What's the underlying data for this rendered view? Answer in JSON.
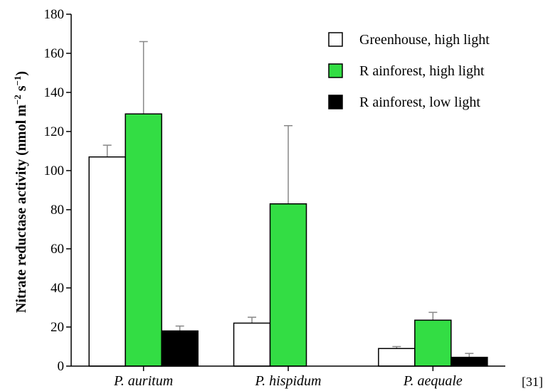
{
  "chart_data": {
    "type": "bar",
    "ylabel": "Nitrate reductase activity (nmol m",
    "ylabel_sup1": "−2",
    "ylabel_mid": " s",
    "ylabel_sup2": "−1",
    "ylabel_end": ")",
    "ylim": [
      0,
      180
    ],
    "yticks": [
      "0",
      "20",
      "40",
      "60",
      "80",
      "100",
      "120",
      "140",
      "160",
      "180"
    ],
    "categories": [
      "P. auritum",
      "P. hispidum",
      "P. aequale"
    ],
    "series": [
      {
        "name": "Greenhouse, high light",
        "color": "#ffffff",
        "values": [
          107,
          22,
          9
        ],
        "errors": [
          6,
          3,
          1
        ]
      },
      {
        "name": "R ainforest, high light",
        "color": "#33dd44",
        "values": [
          129,
          83,
          23.5
        ],
        "errors": [
          37,
          40,
          4
        ]
      },
      {
        "name": "R ainforest, low light",
        "color": "#000000",
        "values": [
          18,
          null,
          4.5
        ],
        "errors": [
          2.5,
          null,
          2
        ]
      }
    ],
    "legend_position": "top-right",
    "grid": false
  },
  "reference": "[31]"
}
